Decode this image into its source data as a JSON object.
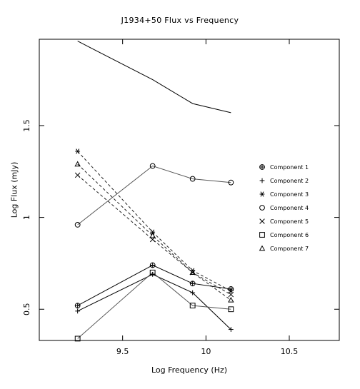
{
  "chart_data": {
    "type": "line",
    "title": "J1934+50 Flux vs Frequency",
    "xlabel": "Log Frequency (Hz)",
    "ylabel": "Log Flux (mJy)",
    "xlim": [
      9.0,
      10.8
    ],
    "ylim": [
      0.33,
      1.97
    ],
    "x_ticks": [
      9.5,
      10,
      10.5
    ],
    "x_tick_labels": [
      "9.5",
      "10",
      "10.5"
    ],
    "y_ticks": [
      0.5,
      1,
      1.5
    ],
    "y_tick_labels": [
      "0.5",
      "1",
      "1.5"
    ],
    "grid": false,
    "legend_position": "right",
    "series": [
      {
        "name": "Component 1",
        "marker": "circle-plus",
        "line": "solid",
        "x": [
          9.23,
          9.68,
          9.92,
          10.15
        ],
        "y": [
          0.52,
          0.74,
          0.64,
          0.61
        ]
      },
      {
        "name": "Component 2",
        "marker": "plus",
        "line": "solid",
        "x": [
          9.23,
          9.68,
          9.92,
          10.15
        ],
        "y": [
          0.49,
          0.69,
          0.59,
          0.39
        ]
      },
      {
        "name": "Component 3",
        "marker": "asterisk",
        "line": "dashed",
        "x": [
          9.23,
          9.68,
          9.92,
          10.15
        ],
        "y": [
          1.36,
          0.92,
          0.71,
          0.6
        ]
      },
      {
        "name": "Component 4",
        "marker": "circle",
        "line": "solid",
        "x": [
          9.23,
          9.68,
          9.92,
          10.15
        ],
        "y": [
          0.96,
          1.28,
          1.21,
          1.19
        ]
      },
      {
        "name": "Component 5",
        "marker": "x",
        "line": "dashed",
        "x": [
          9.23,
          9.68,
          9.92,
          10.15
        ],
        "y": [
          1.23,
          0.88,
          0.7,
          0.58
        ]
      },
      {
        "name": "Component 6",
        "marker": "square",
        "line": "solid",
        "x": [
          9.23,
          9.68,
          9.92,
          10.15
        ],
        "y": [
          0.34,
          0.7,
          0.52,
          0.5
        ]
      },
      {
        "name": "Component 7",
        "marker": "triangle",
        "line": "dashed",
        "x": [
          9.23,
          9.68,
          9.92,
          10.15
        ],
        "y": [
          1.29,
          0.9,
          0.7,
          0.55
        ]
      },
      {
        "name": "",
        "marker": "none",
        "line": "solid",
        "x": [
          9.23,
          9.68,
          9.92,
          10.15
        ],
        "y": [
          1.96,
          1.75,
          1.62,
          1.57
        ]
      }
    ]
  }
}
